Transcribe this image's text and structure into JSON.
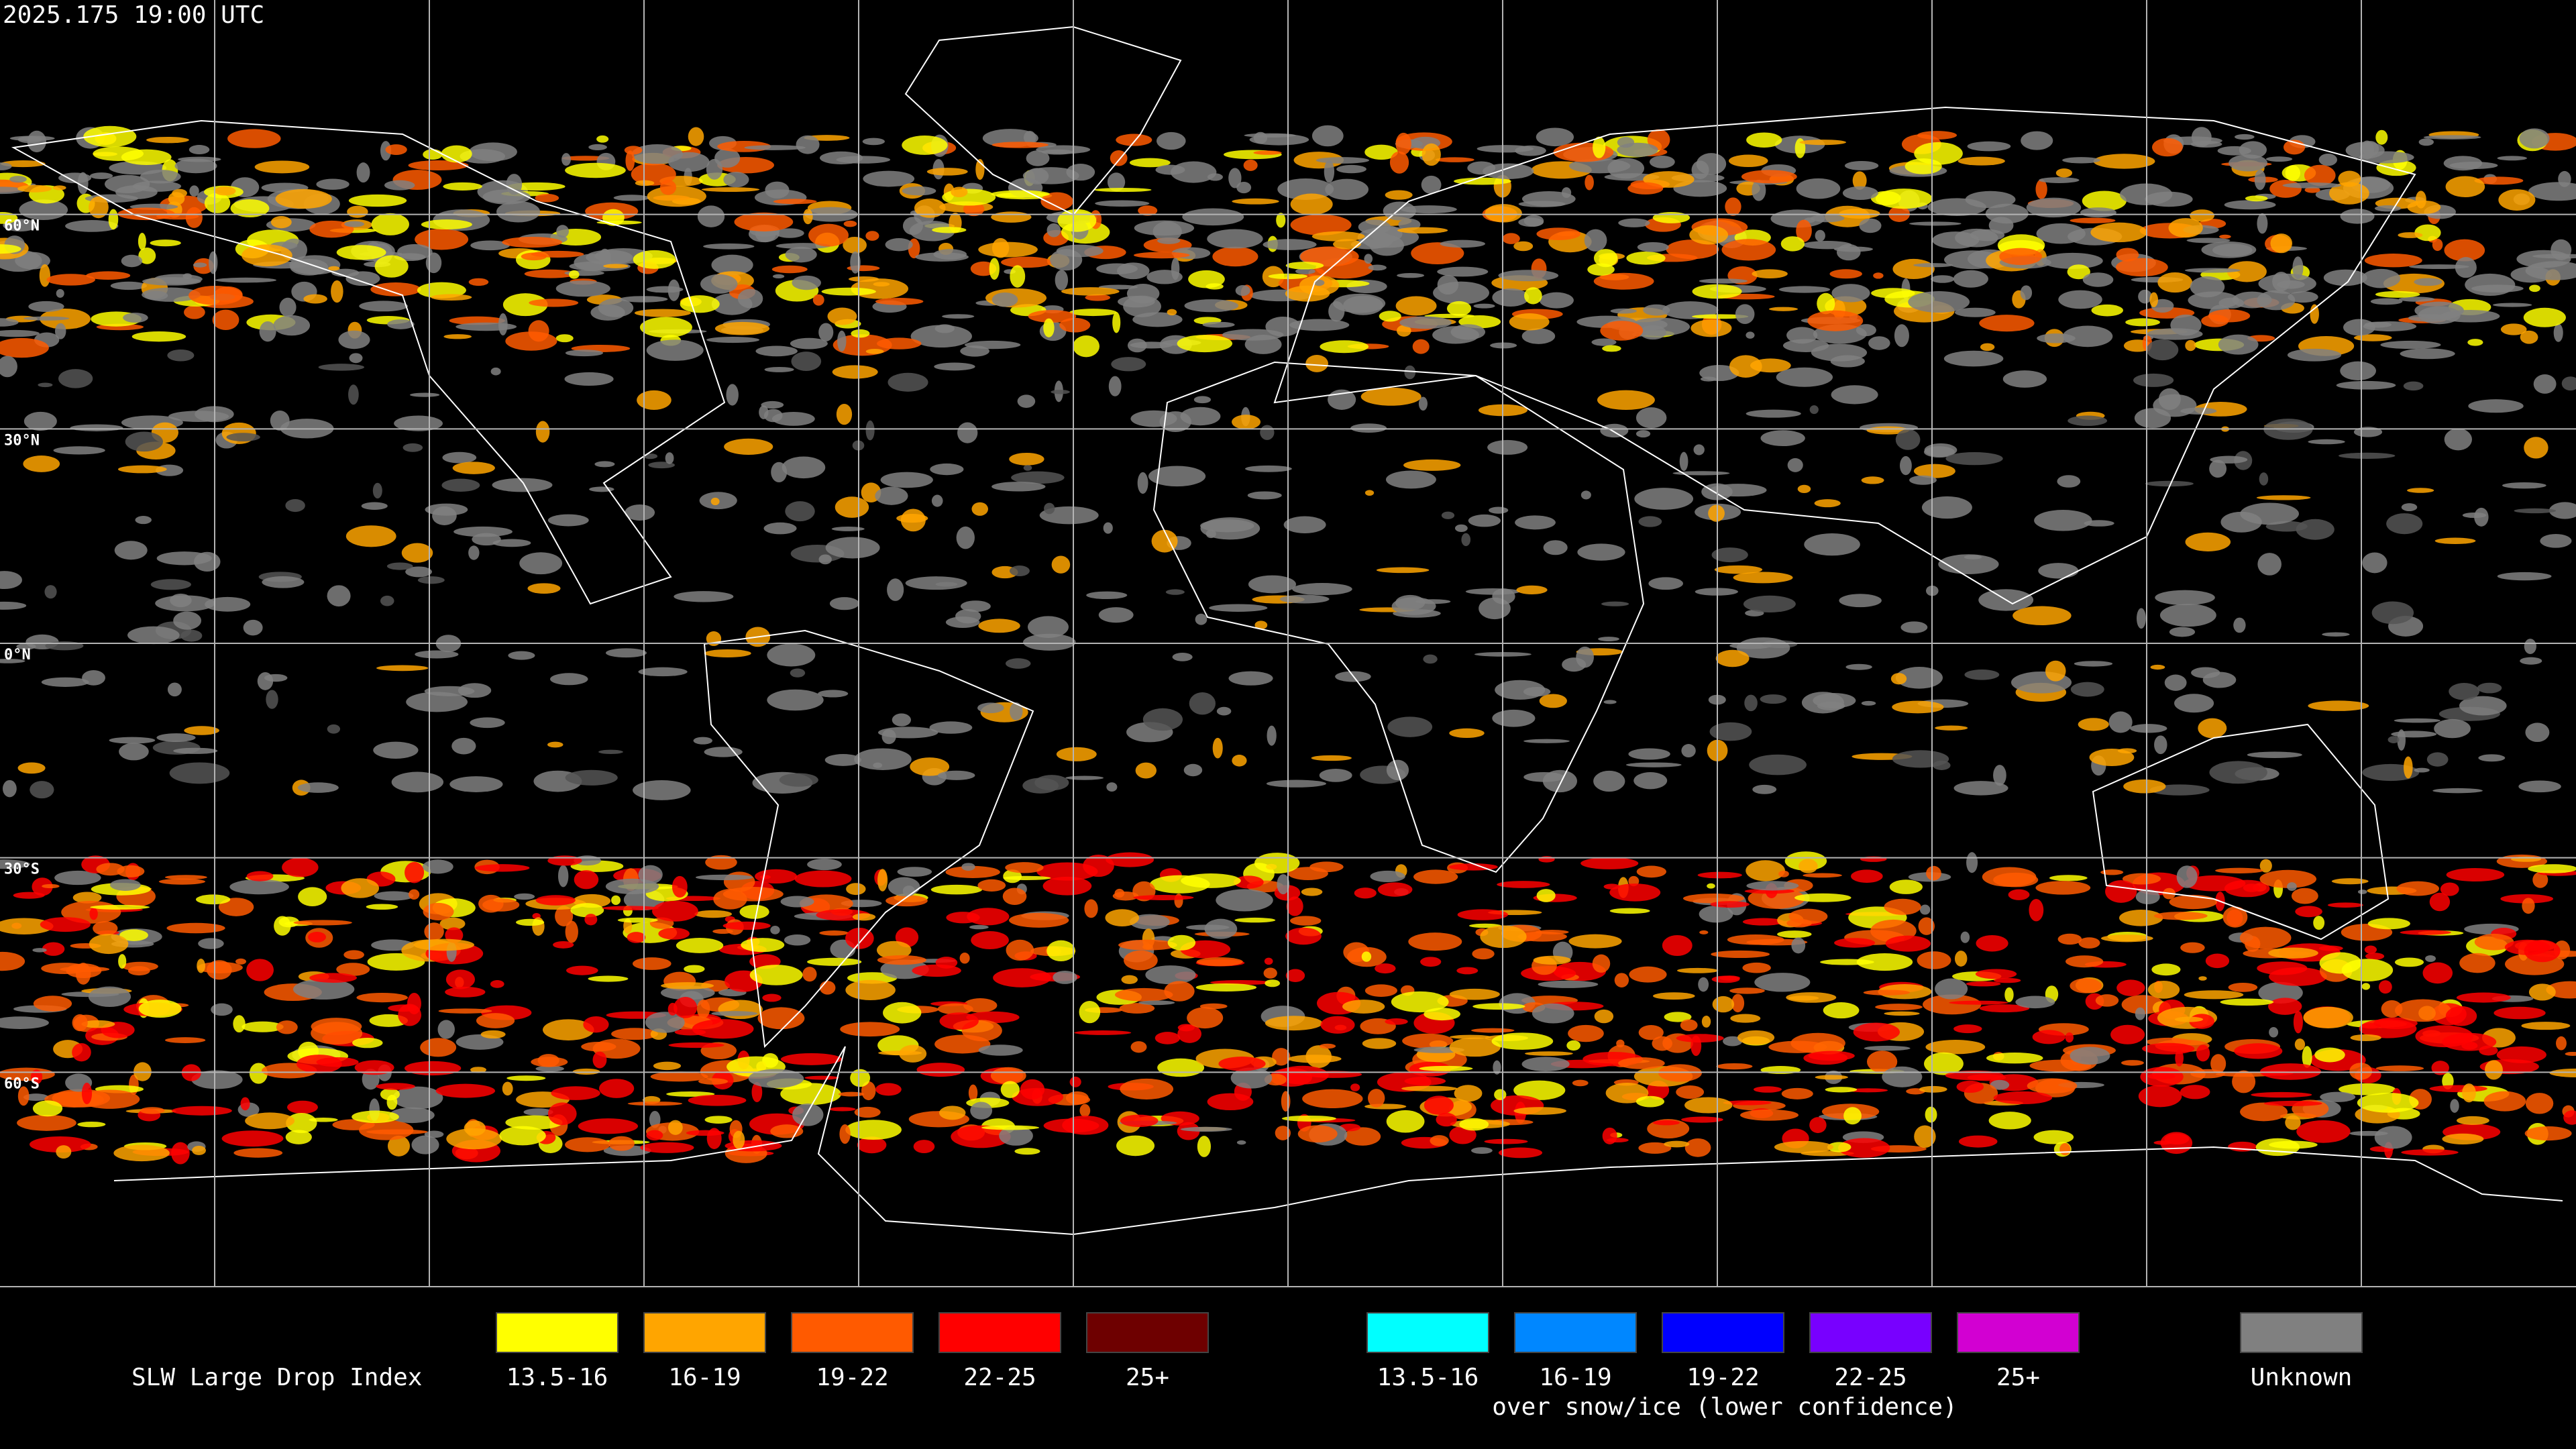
{
  "header": {
    "timestamp": "2025.175 19:00 UTC"
  },
  "map": {
    "lat_labels": [
      "60°N",
      "30°N",
      "0°N",
      "30°S",
      "60°S"
    ]
  },
  "legend": {
    "title": "SLW Large Drop Index",
    "classes": [
      {
        "label": "13.5-16",
        "color": "#ffff00"
      },
      {
        "label": "16-19",
        "color": "#ffa500"
      },
      {
        "label": "19-22",
        "color": "#ff5a00"
      },
      {
        "label": "22-25",
        "color": "#ff0000"
      },
      {
        "label": "25+",
        "color": "#6e0000"
      }
    ],
    "snow_classes": [
      {
        "label": "13.5-16",
        "color": "#00ffff"
      },
      {
        "label": "16-19",
        "color": "#0087ff"
      },
      {
        "label": "19-22",
        "color": "#0000ff"
      },
      {
        "label": "22-25",
        "color": "#7800ff"
      },
      {
        "label": "25+",
        "color": "#d200d2"
      }
    ],
    "snow_caption": "over snow/ice (lower confidence)",
    "unknown": {
      "label": "Unknown",
      "color": "#808080"
    }
  }
}
